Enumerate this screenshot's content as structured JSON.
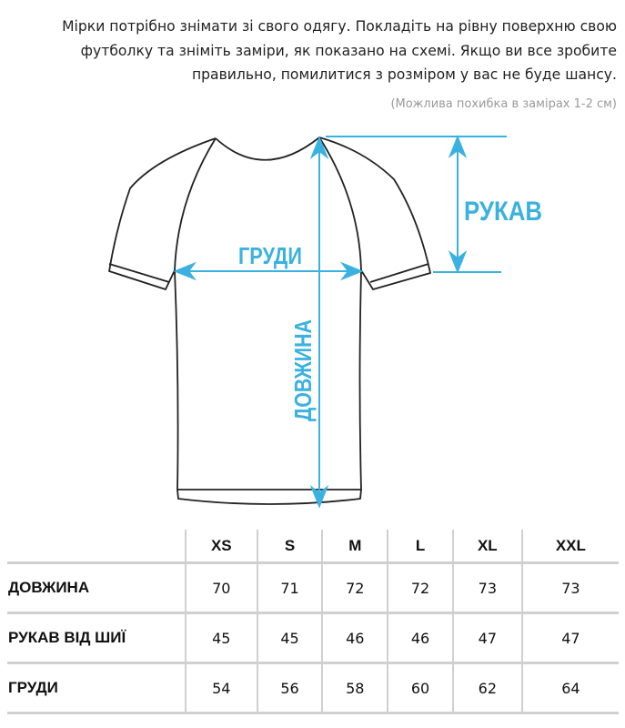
{
  "intro": {
    "text": "Мірки потрібно знімати зі свого одягу. Покладіть на рівну поверхню свою футболку та зніміть заміри, як показано на схемі. Якщо ви все зробите правильно, помилитися з розміром у вас не буде шансу.",
    "note": "(Можлива похибка в замірах 1-2 см)"
  },
  "diagram": {
    "accent_color": "#3bb1e0",
    "labels": {
      "chest": "ГРУДИ",
      "sleeve": "РУКАВ",
      "length": "ДОВЖИНА"
    }
  },
  "size_table": {
    "sizes": [
      "XS",
      "S",
      "M",
      "L",
      "XL",
      "XXL"
    ],
    "rows": [
      {
        "label": "ДОВЖИНА",
        "values": [
          "70",
          "71",
          "72",
          "72",
          "73",
          "73"
        ]
      },
      {
        "label": "РУКАВ ВІД ШИЇ",
        "values": [
          "45",
          "45",
          "46",
          "46",
          "47",
          "47"
        ]
      },
      {
        "label": "ГРУДИ",
        "values": [
          "54",
          "56",
          "58",
          "60",
          "62",
          "64"
        ]
      }
    ]
  }
}
